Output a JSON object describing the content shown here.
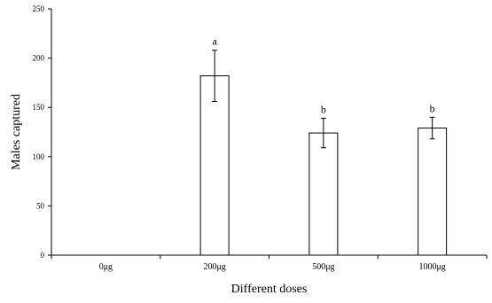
{
  "chart_data": {
    "type": "bar",
    "title": "",
    "xlabel": "Different doses",
    "ylabel": "Males captured",
    "ylim": [
      0,
      250
    ],
    "yticks": [
      0,
      50,
      100,
      150,
      200,
      250
    ],
    "categories": [
      "0μg",
      "200μg",
      "500μg",
      "1000μg"
    ],
    "values": [
      0,
      182,
      124,
      129
    ],
    "error_low": [
      0,
      156,
      109,
      118
    ],
    "error_high": [
      0,
      208,
      139,
      140
    ],
    "significance_letters": [
      "",
      "a",
      "b",
      "b"
    ],
    "grid": false,
    "bar_fill": "#ffffff",
    "bar_stroke": "#000000",
    "axis_color": "#000000"
  }
}
